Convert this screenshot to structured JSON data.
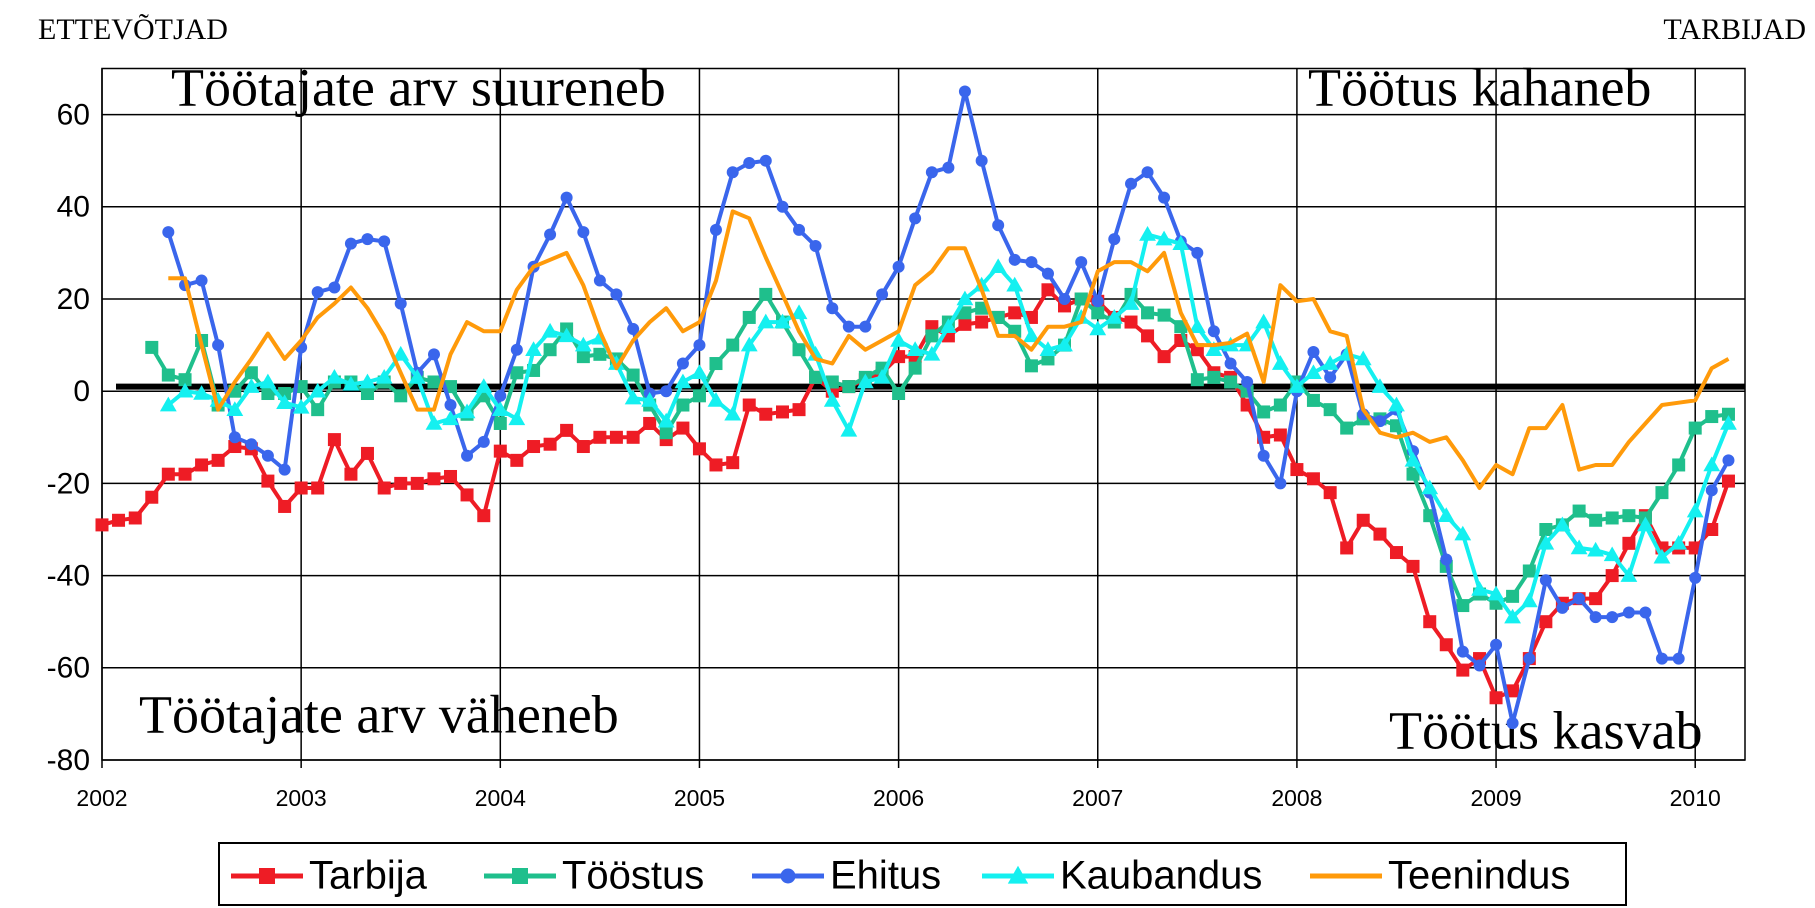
{
  "chart_data": {
    "type": "line",
    "left_label": "ETTEVÕTJAD",
    "right_label": "TARBIJAD",
    "annotations": [
      "Töötajate arv suureneb",
      "Töötus kahaneb",
      "Töötajate arv väheneb",
      "Töötus kasvab"
    ],
    "x": [
      2002,
      2002.083,
      2002.167,
      2002.25,
      2002.333,
      2002.417,
      2002.5,
      2002.583,
      2002.667,
      2002.75,
      2002.833,
      2002.917,
      2003,
      2003.083,
      2003.167,
      2003.25,
      2003.333,
      2003.417,
      2003.5,
      2003.583,
      2003.667,
      2003.75,
      2003.833,
      2003.917,
      2004,
      2004.083,
      2004.167,
      2004.25,
      2004.333,
      2004.417,
      2004.5,
      2004.583,
      2004.667,
      2004.75,
      2004.833,
      2004.917,
      2005,
      2005.083,
      2005.167,
      2005.25,
      2005.333,
      2005.417,
      2005.5,
      2005.583,
      2005.667,
      2005.75,
      2005.833,
      2005.917,
      2006,
      2006.083,
      2006.167,
      2006.25,
      2006.333,
      2006.417,
      2006.5,
      2006.583,
      2006.667,
      2006.75,
      2006.833,
      2006.917,
      2007,
      2007.083,
      2007.167,
      2007.25,
      2007.333,
      2007.417,
      2007.5,
      2007.583,
      2007.667,
      2007.75,
      2007.833,
      2007.917,
      2008,
      2008.083,
      2008.167,
      2008.25,
      2008.333,
      2008.417,
      2008.5,
      2008.583,
      2008.667,
      2008.75,
      2008.833,
      2008.917,
      2009,
      2009.083,
      2009.167,
      2009.25,
      2009.333,
      2009.417,
      2009.5,
      2009.583,
      2009.667,
      2009.75,
      2009.833,
      2009.917,
      2010,
      2010.083,
      2010.167
    ],
    "series": [
      {
        "name": "Tarbija",
        "color": "#ee1c25",
        "marker": "square",
        "values": [
          -29,
          -28,
          -27.5,
          -23,
          -18,
          -18,
          -16,
          -15,
          -12,
          -12.5,
          -19.5,
          -25,
          -21,
          -21,
          -10.5,
          -18,
          -13.5,
          -21,
          -20,
          -20,
          -19,
          -18.5,
          -22.5,
          -27,
          -13,
          -15,
          -12,
          -11.5,
          -8.5,
          -12,
          -10,
          -10,
          -10,
          -7,
          -10.5,
          -8,
          -12.5,
          -16,
          -15.5,
          -3,
          -5,
          -4.5,
          -4,
          3,
          0,
          1,
          2.5,
          4,
          7.5,
          7.5,
          14,
          12,
          14.5,
          15,
          16,
          17,
          16,
          22,
          18.5,
          20,
          19.5,
          16,
          15,
          12,
          7.5,
          11,
          9,
          4,
          3,
          -3,
          -10,
          -9.5,
          -17,
          -19,
          -22,
          -34,
          -28,
          -31,
          -35,
          -38,
          -50,
          -55,
          -60.5,
          -58,
          -66.5,
          -65,
          -58,
          -50,
          -46,
          -45,
          -45,
          -40,
          -33,
          -27,
          -34,
          -34,
          -34,
          -30,
          -19.5
        ]
      },
      {
        "name": "Tööstus",
        "color": "#1fbf8c",
        "marker": "square",
        "values": [
          null,
          null,
          null,
          9.5,
          3.5,
          2.5,
          11,
          -3,
          0,
          4,
          -0.5,
          -0.5,
          1,
          -4,
          2,
          2,
          -0.5,
          2,
          -1,
          3,
          2,
          1,
          -5,
          -1,
          -7,
          4,
          4.5,
          9,
          13.5,
          7.5,
          8,
          7,
          3.5,
          -3,
          -9,
          -3,
          -1,
          6,
          10,
          16,
          21,
          15,
          9,
          3,
          2,
          1,
          3,
          5,
          -0.5,
          5,
          12,
          15,
          17,
          18,
          16,
          13,
          5.5,
          7,
          10,
          20,
          17,
          15,
          21,
          17,
          16.5,
          14,
          2.5,
          3,
          2,
          0,
          -4.5,
          -3,
          2,
          -2,
          -4,
          -8,
          -6,
          -6,
          -7.5,
          -18,
          -27,
          -38,
          -46.5,
          -44,
          -46,
          -44.5,
          -39,
          -30,
          -29,
          -26,
          -28,
          -27.5,
          -27,
          -27.5,
          -22,
          -16,
          -8,
          -5.5,
          -5
        ]
      },
      {
        "name": "Ehitus",
        "color": "#3a66ec",
        "marker": "circle",
        "values": [
          null,
          null,
          null,
          null,
          34.5,
          23,
          24,
          10,
          -10,
          -11.5,
          -14,
          -17,
          9.5,
          21.5,
          22.5,
          32,
          33,
          32.5,
          19,
          4,
          8,
          -3,
          -14,
          -11,
          -1,
          9,
          27,
          34,
          42,
          34.5,
          24,
          21,
          13.5,
          -0.5,
          0,
          6,
          10,
          35,
          47.5,
          49.5,
          50,
          40,
          35,
          31.5,
          18,
          14,
          14,
          21,
          27,
          37.5,
          47.5,
          48.5,
          65,
          50,
          36,
          28.5,
          28,
          25.5,
          20,
          28,
          19.5,
          33,
          45,
          47.5,
          42,
          32.5,
          30,
          13,
          6,
          2,
          -14,
          -20,
          0,
          8.5,
          3,
          8,
          -5,
          -6.5,
          -4,
          -13,
          -22,
          -36.5,
          -56.5,
          -59.5,
          -55,
          -72,
          -58,
          -41,
          -47,
          -45,
          -49,
          -49,
          -48,
          -48,
          -58,
          -58,
          -40.5,
          -21.5,
          -15
        ]
      },
      {
        "name": "Kaubandus",
        "color": "#14f0f0",
        "marker": "triangle",
        "values": [
          null,
          null,
          null,
          null,
          -3,
          0,
          -0.5,
          -2,
          -4,
          1,
          2,
          -2.5,
          -3.5,
          0,
          3,
          1.5,
          2,
          3,
          8,
          3,
          -7,
          -6,
          -4.5,
          1,
          -4,
          -6,
          9,
          13,
          12,
          10,
          11.5,
          6,
          -1.5,
          -2,
          -6.5,
          2,
          4,
          -2,
          -5,
          10,
          15,
          15,
          17,
          8,
          -2,
          -8.5,
          2,
          3,
          11,
          9,
          8,
          14,
          20,
          23,
          27,
          23,
          12,
          9,
          10,
          16,
          13.5,
          16,
          19,
          34,
          33,
          32,
          14,
          9,
          10,
          10,
          15,
          6,
          1,
          4,
          6,
          8,
          7,
          1,
          -3,
          -15,
          -21,
          -27,
          -31,
          -43,
          -44,
          -49,
          -45.5,
          -33,
          -29,
          -34,
          -34.5,
          -35.5,
          -40,
          -29,
          -36,
          -33,
          -26,
          -16,
          -7
        ]
      },
      {
        "name": "Teenindus",
        "color": "#ff9a0a",
        "values": [
          null,
          null,
          null,
          null,
          24.5,
          24.5,
          10,
          -4,
          2,
          7,
          12.5,
          7,
          11,
          16,
          19,
          22.5,
          18,
          12,
          4,
          -4,
          -4,
          8,
          15,
          13,
          13,
          22,
          27,
          28.5,
          30,
          23,
          13,
          5,
          11,
          15,
          18,
          13,
          15,
          24,
          39,
          37.5,
          29,
          21,
          13,
          7,
          6,
          12,
          9,
          11,
          13,
          23,
          26,
          31,
          31,
          22,
          12,
          12,
          9,
          14,
          14,
          15,
          26,
          28,
          28,
          26,
          30,
          17,
          10,
          10,
          10.5,
          12.5,
          2,
          23,
          19.5,
          20,
          13,
          12,
          -4,
          -9,
          -10,
          -9,
          -11,
          -10,
          -15,
          -21,
          -16,
          -18,
          -8,
          -8,
          -3,
          -17,
          -16,
          -16,
          -11,
          -7,
          -3,
          -2.5,
          -2,
          5,
          7
        ]
      }
    ],
    "hline": 1,
    "xlim": [
      2002,
      2010.25
    ],
    "xticks": [
      2002,
      2003,
      2004,
      2005,
      2006,
      2007,
      2008,
      2009,
      2010
    ],
    "ylim": [
      -80,
      70
    ],
    "yticks": [
      -80,
      -60,
      -40,
      -20,
      0,
      20,
      40,
      60
    ],
    "grid": true,
    "legend": "bottom"
  }
}
